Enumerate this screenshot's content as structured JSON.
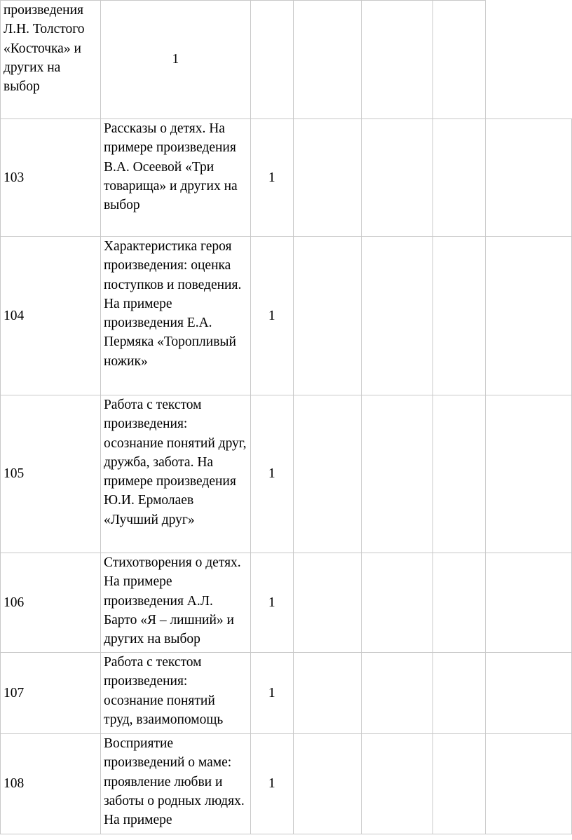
{
  "rows": [
    {
      "num": "",
      "topic": "",
      "first_cell_text": "произведения Л.Н. Толстого «Косточка» и других на выбор",
      "hours": "1"
    },
    {
      "num": "103",
      "topic": "Рассказы о детях. На примере произведения В.А. Осеевой «Три товарища» и других на выбор",
      "hours": "1"
    },
    {
      "num": "104",
      "topic": "Характеристика героя произведения: оценка поступков и поведения. На примере произведения Е.А. Пермяка «Торопливый ножик»",
      "hours": "1"
    },
    {
      "num": "105",
      "topic": "Работа с текстом произведения: осознание понятий друг, дружба, забота. На примере произведения Ю.И. Ермолаев «Лучший друг»",
      "hours": "1"
    },
    {
      "num": "106",
      "topic": "Стихотворения о детях. На примере произведения А.Л. Барто «Я – лишний» и других на выбор",
      "hours": "1"
    },
    {
      "num": "107",
      "topic": "Работа с текстом произведения: осознание понятий труд, взаимопомощь",
      "hours": "1"
    },
    {
      "num": "108",
      "topic": "Восприятие произведений о маме: проявление любви и заботы о родных людях. На примере",
      "hours": "1"
    }
  ]
}
